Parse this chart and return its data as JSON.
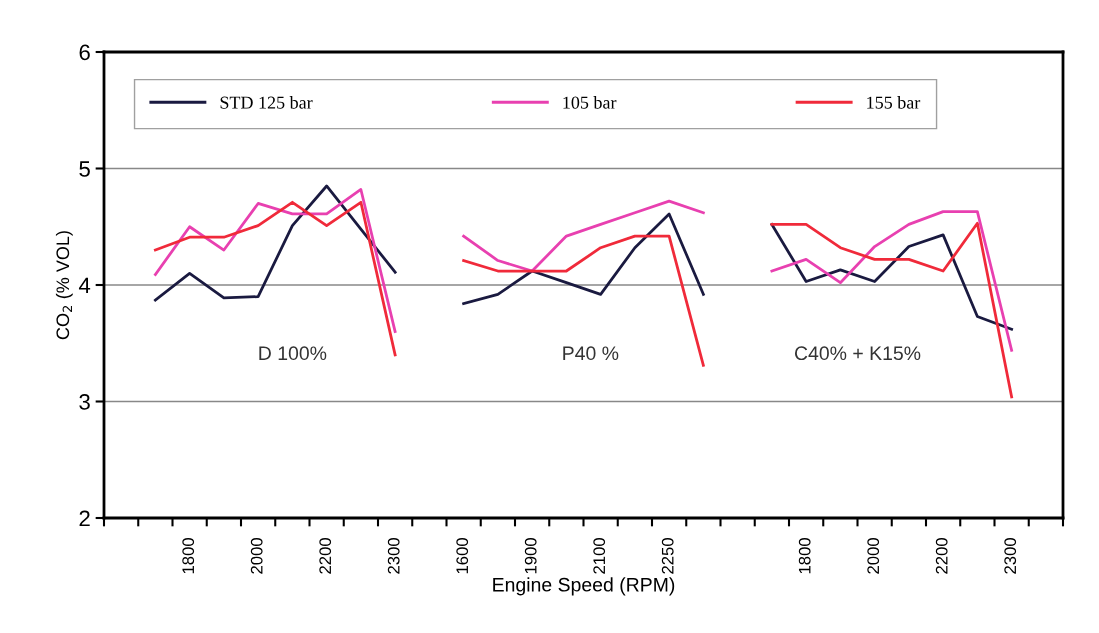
{
  "chart_data": {
    "type": "line",
    "xlabel": "Engine Speed (RPM)",
    "ylabel": "CO$_{2}$ (% VOL)",
    "categories": [
      null,
      null,
      "1800",
      null,
      "2000",
      null,
      "2200",
      null,
      "2300",
      null,
      "1600",
      null,
      "1900",
      null,
      "2100",
      null,
      "2250",
      null,
      null,
      null,
      "1800",
      null,
      "2000",
      null,
      "2200",
      null,
      "2300",
      null
    ],
    "ylim": [
      2,
      6
    ],
    "yticks": [
      2,
      3,
      4,
      5,
      6
    ],
    "grid": "y",
    "legend": "top",
    "marker": "none",
    "line_style": "solid",
    "series": [
      {
        "name": "STD 125 bar",
        "color": "#1a1a40",
        "values": [
          null,
          3.87,
          4.1,
          3.89,
          3.9,
          4.51,
          4.85,
          4.48,
          4.11,
          null,
          3.84,
          3.92,
          4.12,
          4.02,
          3.92,
          4.32,
          4.61,
          3.92,
          null,
          4.52,
          4.03,
          4.13,
          4.03,
          4.33,
          4.43,
          3.73,
          3.62,
          null
        ]
      },
      {
        "name": "105 bar",
        "color": "#e840b0",
        "values": [
          null,
          4.09,
          4.5,
          4.3,
          4.7,
          4.61,
          4.61,
          4.82,
          3.6,
          null,
          4.42,
          4.21,
          4.12,
          4.42,
          4.52,
          4.62,
          4.72,
          4.62,
          null,
          4.12,
          4.22,
          4.02,
          4.33,
          4.52,
          4.63,
          4.63,
          3.44,
          null
        ]
      },
      {
        "name": "155 bar",
        "color": "#f02a3a",
        "values": [
          null,
          4.3,
          4.41,
          4.41,
          4.51,
          4.71,
          4.51,
          4.71,
          3.4,
          null,
          4.21,
          4.12,
          4.12,
          4.12,
          4.32,
          4.42,
          4.42,
          3.31,
          null,
          4.52,
          4.52,
          4.32,
          4.22,
          4.22,
          4.12,
          4.53,
          3.04,
          null
        ]
      }
    ],
    "annotations": [
      "D 100%",
      "P40 %",
      "C40% + K15%"
    ]
  }
}
